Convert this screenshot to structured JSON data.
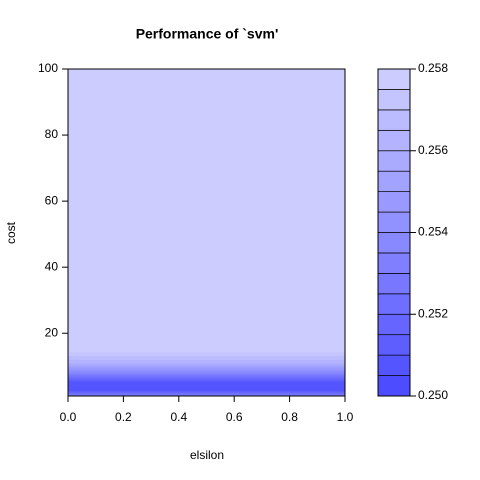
{
  "chart_data": {
    "type": "filled_contour",
    "title": "Performance of `svm'",
    "xlabel": "elsilon",
    "ylabel": "cost",
    "xlim": [
      0,
      1
    ],
    "xticks": [
      {
        "value": 0,
        "label": "0.0"
      },
      0.2,
      0.4,
      0.6,
      0.8,
      {
        "value": 1,
        "label": "1.0"
      }
    ],
    "ylim": [
      1,
      100
    ],
    "yticks": [
      20,
      40,
      60,
      80,
      100
    ],
    "y": [
      1,
      3,
      5,
      8,
      11,
      15,
      100
    ],
    "z": [
      0.2535,
      0.2505,
      0.2505,
      0.2535,
      0.256,
      0.2578,
      0.2579
    ],
    "levels": [
      0.25,
      0.2505,
      0.251,
      0.2515,
      0.252,
      0.2525,
      0.253,
      0.2535,
      0.254,
      0.2545,
      0.255,
      0.2555,
      0.256,
      0.2565,
      0.257,
      0.2575,
      0.258
    ],
    "level_ticks": [
      {
        "value": 0.25,
        "label": "0.250"
      },
      {
        "value": 0.252,
        "label": "0.252"
      },
      {
        "value": 0.254,
        "label": "0.254"
      },
      {
        "value": 0.256,
        "label": "0.256"
      },
      {
        "value": 0.258,
        "label": "0.258"
      }
    ],
    "color_low": "#4d4dff",
    "color_high": "#ccccff"
  }
}
